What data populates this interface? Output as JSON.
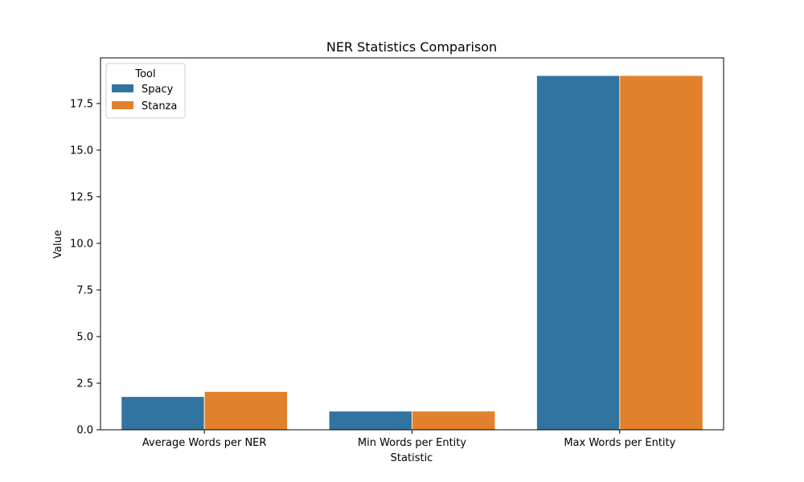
{
  "chart_data": {
    "type": "bar",
    "title": "NER Statistics Comparison",
    "xlabel": "Statistic",
    "ylabel": "Value",
    "categories": [
      "Average Words per NER",
      "Min Words per Entity",
      "Max Words per Entity"
    ],
    "series": [
      {
        "name": "Spacy",
        "color": "#3274a1",
        "values": [
          1.78,
          1.0,
          19.0
        ]
      },
      {
        "name": "Stanza",
        "color": "#e1812c",
        "values": [
          2.05,
          1.0,
          19.0
        ]
      }
    ],
    "ylim": [
      0,
      19.95
    ],
    "yticks": [
      0.0,
      2.5,
      5.0,
      7.5,
      10.0,
      12.5,
      15.0,
      17.5
    ],
    "ytick_labels": [
      "0.0",
      "2.5",
      "5.0",
      "7.5",
      "10.0",
      "12.5",
      "15.0",
      "17.5"
    ],
    "grid": false,
    "legend": {
      "title": "Tool",
      "placement": "top-left"
    }
  }
}
